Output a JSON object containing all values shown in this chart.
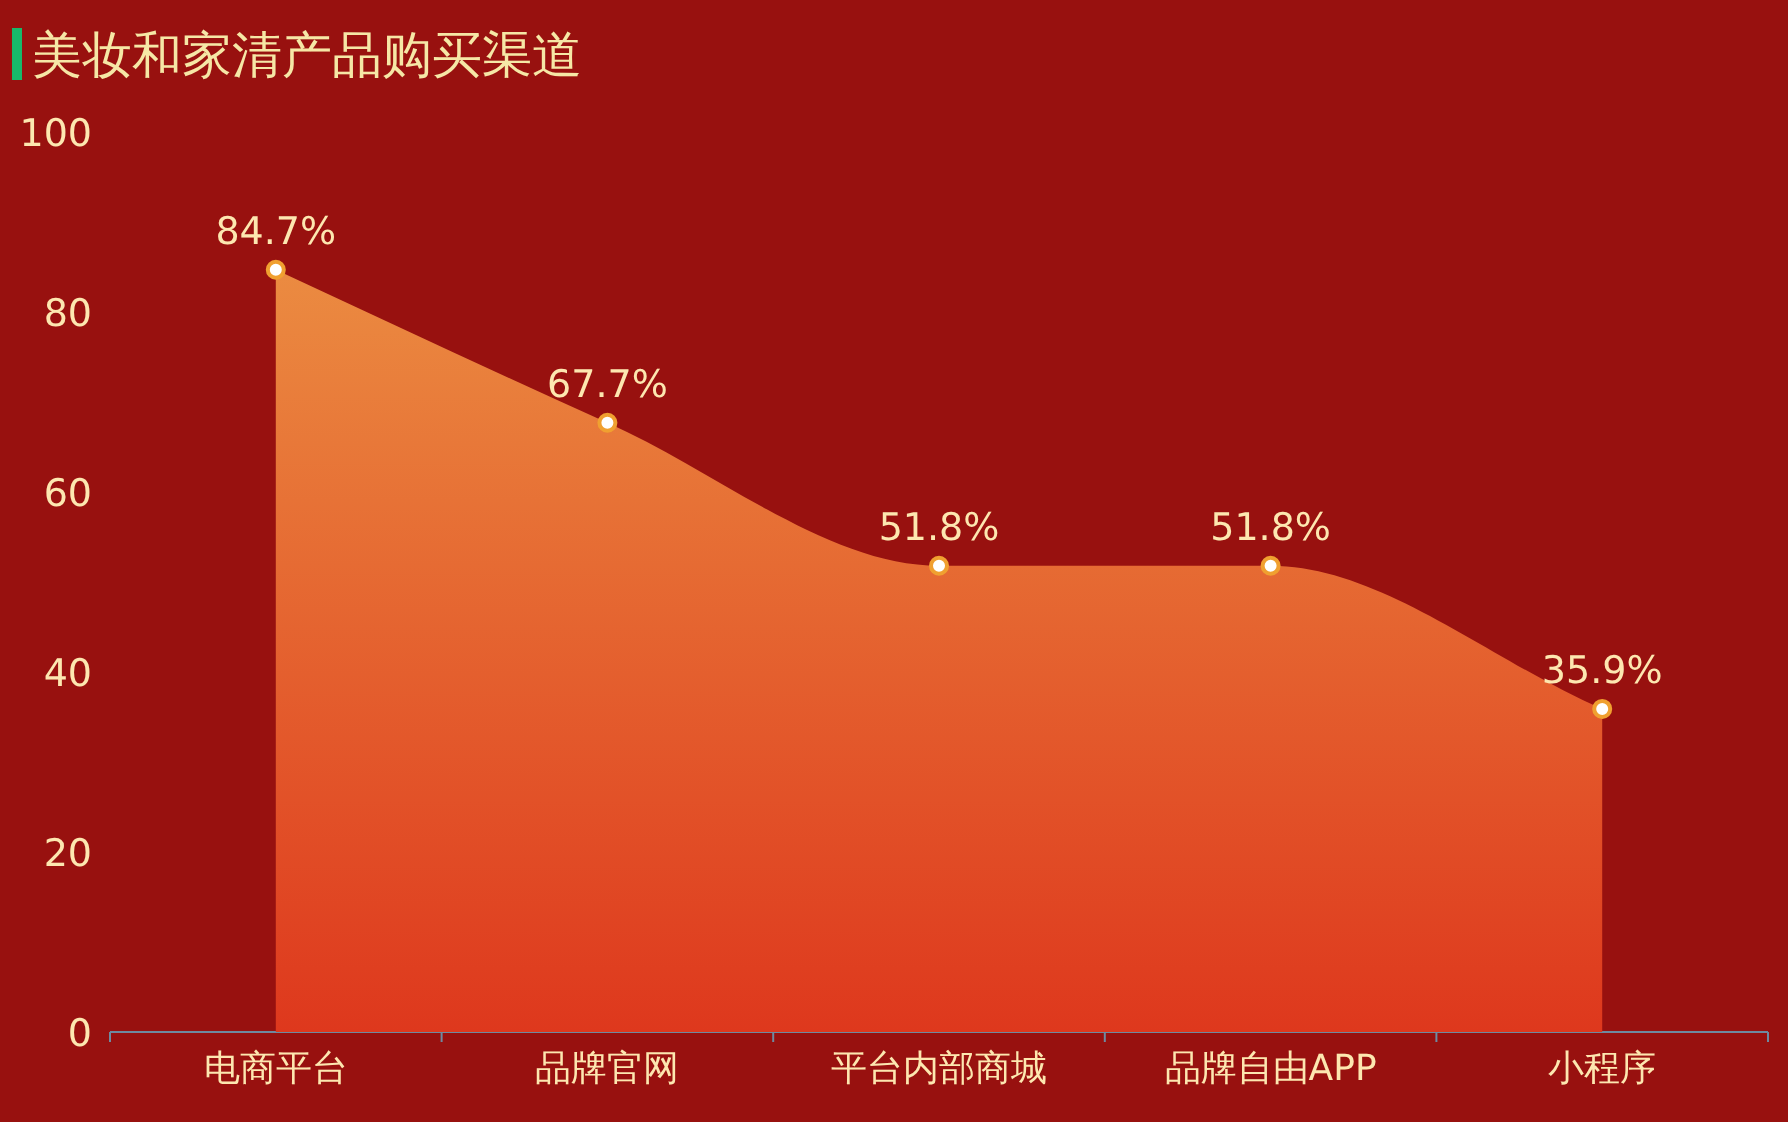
{
  "chart_data": {
    "type": "area",
    "title": "美妆和家清产品购买渠道",
    "categories": [
      "电商平台",
      "品牌官网",
      "平台内部商城",
      "品牌自由APP",
      "小程序"
    ],
    "series": [
      {
        "color": "#e3532a",
        "values": [
          84.7,
          67.7,
          51.8,
          51.8,
          35.9
        ],
        "value_labels": [
          "84.7%",
          "67.7%",
          "51.8%",
          "51.8%",
          "35.9%"
        ]
      }
    ],
    "ylim": [
      0,
      100
    ],
    "yticks": [
      0,
      20,
      40,
      60,
      80,
      100
    ],
    "grid": false,
    "marker": "circle"
  }
}
